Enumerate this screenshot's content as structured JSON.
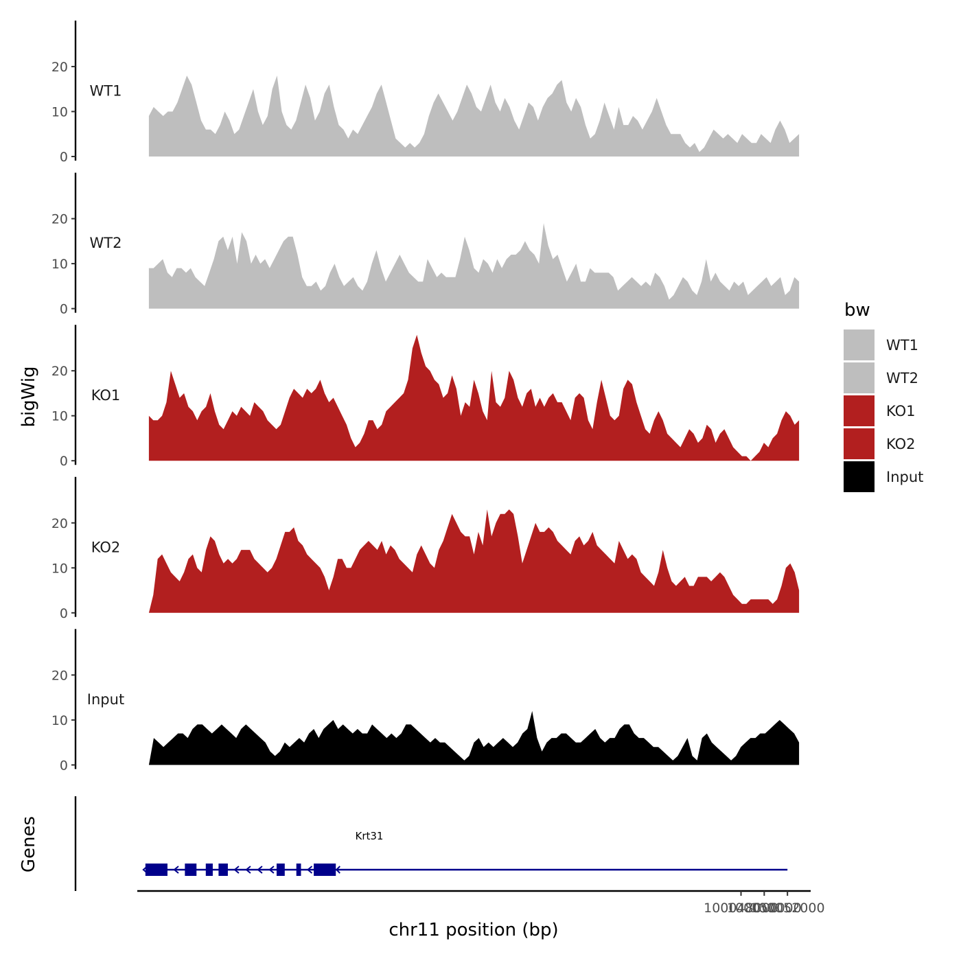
{
  "chart_data": {
    "type": "area",
    "title": "",
    "xlabel": "chr11 position (bp)",
    "ylabel": "bigWig",
    "genes_label": "Genes",
    "x_range": [
      99997000,
      100053000
    ],
    "xlim": [
      99996000,
      100054000
    ],
    "x_ticks": [
      100048000,
      100050000,
      100052000
    ],
    "x_tick_labels": [
      "100048000",
      "100050000",
      "100052000"
    ],
    "ylim": [
      0,
      29
    ],
    "y_ticks": [
      0,
      10,
      20
    ],
    "y_tick_labels": [
      "0",
      "10",
      "20"
    ],
    "legend": {
      "title": "bw",
      "position": "right",
      "entries": [
        {
          "label": "WT1",
          "color": "#bebebe"
        },
        {
          "label": "WT2",
          "color": "#bebebe"
        },
        {
          "label": "KO1",
          "color": "#b21f1f"
        },
        {
          "label": "KO2",
          "color": "#b21f1f"
        },
        {
          "label": "Input",
          "color": "#000000"
        }
      ]
    },
    "series": [
      {
        "name": "WT1",
        "color": "#bebebe",
        "values": [
          9,
          11,
          10,
          9,
          10,
          10,
          12,
          15,
          18,
          16,
          12,
          8,
          6,
          6,
          5,
          7,
          10,
          8,
          5,
          6,
          9,
          12,
          15,
          10,
          7,
          9,
          15,
          18,
          10,
          7,
          6,
          8,
          12,
          16,
          13,
          8,
          10,
          14,
          16,
          11,
          7,
          6,
          4,
          6,
          5,
          7,
          9,
          11,
          14,
          16,
          12,
          8,
          4,
          3,
          2,
          3,
          2,
          3,
          5,
          9,
          12,
          14,
          12,
          10,
          8,
          10,
          13,
          16,
          14,
          11,
          10,
          13,
          16,
          12,
          10,
          13,
          11,
          8,
          6,
          9,
          12,
          11,
          8,
          11,
          13,
          14,
          16,
          17,
          12,
          10,
          13,
          11,
          7,
          4,
          5,
          8,
          12,
          9,
          6,
          11,
          7,
          7,
          9,
          8,
          6,
          8,
          10,
          13,
          10,
          7,
          5,
          5,
          5,
          3,
          2,
          3,
          1,
          2,
          4,
          6,
          5,
          4,
          5,
          4,
          3,
          5,
          4,
          3,
          3,
          5,
          4,
          3,
          6,
          8,
          6,
          3,
          4,
          5
        ]
      },
      {
        "name": "WT2",
        "color": "#bebebe",
        "values": [
          9,
          9,
          10,
          11,
          8,
          7,
          9,
          9,
          8,
          9,
          7,
          6,
          5,
          8,
          11,
          15,
          16,
          13,
          16,
          10,
          17,
          15,
          10,
          12,
          10,
          11,
          9,
          11,
          13,
          15,
          16,
          16,
          12,
          7,
          5,
          5,
          6,
          4,
          5,
          8,
          10,
          7,
          5,
          6,
          7,
          5,
          4,
          6,
          10,
          13,
          9,
          6,
          8,
          10,
          12,
          10,
          8,
          7,
          6,
          6,
          11,
          9,
          7,
          8,
          7,
          7,
          7,
          11,
          16,
          13,
          9,
          8,
          11,
          10,
          8,
          11,
          9,
          11,
          12,
          12,
          13,
          15,
          13,
          12,
          10,
          19,
          14,
          11,
          12,
          9,
          6,
          8,
          10,
          6,
          6,
          9,
          8,
          8,
          8,
          8,
          7,
          4,
          5,
          6,
          7,
          6,
          5,
          6,
          5,
          8,
          7,
          5,
          2,
          3,
          5,
          7,
          6,
          4,
          3,
          6,
          11,
          6,
          8,
          6,
          5,
          4,
          6,
          5,
          6,
          3,
          4,
          5,
          6,
          7,
          5,
          6,
          7,
          3,
          4,
          7,
          6
        ]
      },
      {
        "name": "KO1",
        "color": "#b21f1f",
        "values": [
          10,
          9,
          9,
          10,
          13,
          20,
          17,
          14,
          15,
          12,
          11,
          9,
          11,
          12,
          15,
          11,
          8,
          7,
          9,
          11,
          10,
          12,
          11,
          10,
          13,
          12,
          11,
          9,
          8,
          7,
          8,
          11,
          14,
          16,
          15,
          14,
          16,
          15,
          16,
          18,
          15,
          13,
          14,
          12,
          10,
          8,
          5,
          3,
          4,
          6,
          9,
          9,
          7,
          8,
          11,
          12,
          13,
          14,
          15,
          18,
          25,
          28,
          24,
          21,
          20,
          18,
          17,
          14,
          15,
          19,
          16,
          10,
          13,
          12,
          18,
          15,
          11,
          9,
          20,
          13,
          12,
          14,
          20,
          18,
          14,
          12,
          15,
          16,
          12,
          14,
          12,
          14,
          15,
          13,
          13,
          11,
          9,
          14,
          15,
          14,
          9,
          7,
          13,
          18,
          14,
          10,
          9,
          10,
          16,
          18,
          17,
          13,
          10,
          7,
          6,
          9,
          11,
          9,
          6,
          5,
          4,
          3,
          5,
          7,
          6,
          4,
          5,
          8,
          7,
          4,
          6,
          7,
          5,
          3,
          2,
          1,
          1,
          0,
          1,
          2,
          4,
          3,
          5,
          6,
          9,
          11,
          10,
          8,
          9
        ]
      },
      {
        "name": "KO2",
        "color": "#b21f1f",
        "values": [
          0,
          4,
          12,
          13,
          11,
          9,
          8,
          7,
          9,
          12,
          13,
          10,
          9,
          14,
          17,
          16,
          13,
          11,
          12,
          11,
          12,
          14,
          14,
          14,
          12,
          11,
          10,
          9,
          10,
          12,
          15,
          18,
          18,
          19,
          16,
          15,
          13,
          12,
          11,
          10,
          8,
          5,
          8,
          12,
          12,
          10,
          10,
          12,
          14,
          15,
          16,
          15,
          14,
          16,
          13,
          15,
          14,
          12,
          11,
          10,
          9,
          13,
          15,
          13,
          11,
          10,
          14,
          16,
          19,
          22,
          20,
          18,
          17,
          17,
          13,
          18,
          15,
          23,
          17,
          20,
          22,
          22,
          23,
          22,
          17,
          11,
          14,
          17,
          20,
          18,
          18,
          19,
          18,
          16,
          15,
          14,
          13,
          16,
          17,
          15,
          16,
          18,
          15,
          14,
          13,
          12,
          11,
          16,
          14,
          12,
          13,
          12,
          9,
          8,
          7,
          6,
          9,
          14,
          10,
          7,
          6,
          7,
          8,
          6,
          6,
          8,
          8,
          8,
          7,
          8,
          9,
          8,
          6,
          4,
          3,
          2,
          2,
          3,
          3,
          3,
          3,
          3,
          2,
          3,
          6,
          10,
          11,
          9,
          5
        ]
      },
      {
        "name": "Input",
        "color": "#000000",
        "values": [
          0,
          6,
          5,
          4,
          5,
          6,
          7,
          7,
          6,
          8,
          9,
          9,
          8,
          7,
          8,
          9,
          8,
          7,
          6,
          8,
          9,
          8,
          7,
          6,
          5,
          3,
          2,
          3,
          5,
          4,
          5,
          6,
          5,
          7,
          8,
          6,
          8,
          9,
          10,
          8,
          9,
          8,
          7,
          8,
          7,
          7,
          9,
          8,
          7,
          6,
          7,
          6,
          7,
          9,
          9,
          8,
          7,
          6,
          5,
          6,
          5,
          5,
          4,
          3,
          2,
          1,
          2,
          5,
          6,
          4,
          5,
          4,
          5,
          6,
          5,
          4,
          5,
          7,
          8,
          12,
          6,
          3,
          5,
          6,
          6,
          7,
          7,
          6,
          5,
          5,
          6,
          7,
          8,
          6,
          5,
          6,
          6,
          8,
          9,
          9,
          7,
          6,
          6,
          5,
          4,
          4,
          3,
          2,
          1,
          2,
          4,
          6,
          2,
          1,
          6,
          7,
          5,
          4,
          3,
          2,
          1,
          2,
          4,
          5,
          6,
          6,
          7,
          7,
          8,
          9,
          10,
          9,
          8,
          7,
          5
        ]
      }
    ],
    "gene": {
      "name": "Krt31",
      "strand": "-",
      "color": "#00008b",
      "start": 99997000,
      "end": 100052000,
      "exons": [
        [
          99996700,
          99998600
        ],
        [
          100000100,
          100001100
        ],
        [
          100001900,
          100002500
        ],
        [
          100003000,
          100003800
        ],
        [
          100008000,
          100008700
        ],
        [
          100009700,
          100010100
        ],
        [
          100011200,
          100013100
        ]
      ]
    }
  }
}
